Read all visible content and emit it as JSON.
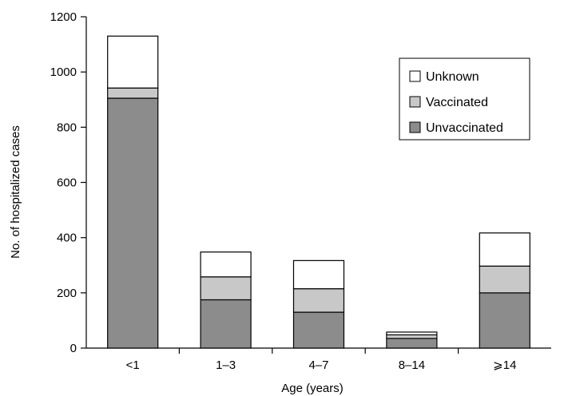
{
  "chart_data": {
    "type": "bar",
    "stacked": true,
    "title": "",
    "xlabel": "Age (years)",
    "ylabel": "No. of hospitalized cases",
    "ylim": [
      0,
      1200
    ],
    "yticks": [
      0,
      200,
      400,
      600,
      800,
      1000,
      1200
    ],
    "categories": [
      "<1",
      "1–3",
      "4–7",
      "8–14",
      "⩾14"
    ],
    "series": [
      {
        "name": "Unvaccinated",
        "color": "#8c8c8c",
        "values": [
          905,
          175,
          130,
          35,
          200
        ]
      },
      {
        "name": "Vaccinated",
        "color": "#c8c8c8",
        "values": [
          37,
          83,
          85,
          13,
          97
        ]
      },
      {
        "name": "Unknown",
        "color": "#ffffff",
        "values": [
          188,
          90,
          102,
          10,
          120
        ]
      }
    ],
    "legend": {
      "position": "top-right",
      "order": [
        "Unknown",
        "Vaccinated",
        "Unvaccinated"
      ]
    },
    "grid": false
  }
}
